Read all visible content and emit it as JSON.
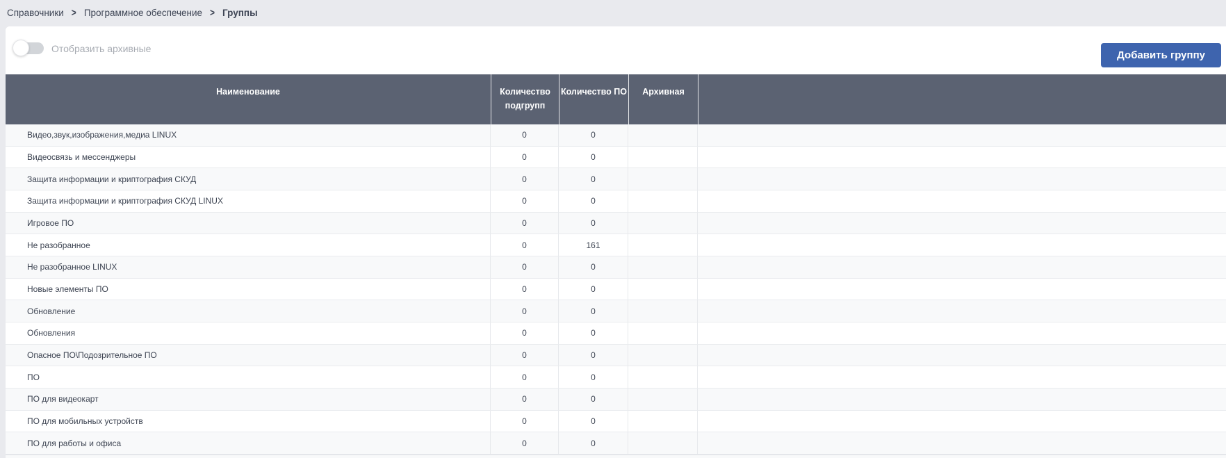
{
  "breadcrumb": {
    "separator": ">",
    "items": [
      {
        "label": "Справочники"
      },
      {
        "label": "Программное обеспечение"
      },
      {
        "label": "Группы"
      }
    ]
  },
  "toolbar": {
    "toggle_label": "Отобразить архивные",
    "toggle_state": "off",
    "add_button_label": "Добавить группу"
  },
  "table": {
    "columns": [
      {
        "label": "Наименование"
      },
      {
        "label": "Количество подгрупп"
      },
      {
        "label": "Количество ПО"
      },
      {
        "label": "Архивная"
      },
      {
        "label": ""
      }
    ],
    "rows": [
      {
        "name": "Видео,звук,изображения,медиа LINUX",
        "subgroups": "0",
        "software": "0",
        "archived": ""
      },
      {
        "name": "Видеосвязь и мессенджеры",
        "subgroups": "0",
        "software": "0",
        "archived": ""
      },
      {
        "name": "Защита информации и криптография СКУД",
        "subgroups": "0",
        "software": "0",
        "archived": ""
      },
      {
        "name": "Защита информации и криптография СКУД LINUX",
        "subgroups": "0",
        "software": "0",
        "archived": ""
      },
      {
        "name": "Игровое ПО",
        "subgroups": "0",
        "software": "0",
        "archived": ""
      },
      {
        "name": "Не разобранное",
        "subgroups": "0",
        "software": "161",
        "archived": ""
      },
      {
        "name": "Не разобранное LINUX",
        "subgroups": "0",
        "software": "0",
        "archived": ""
      },
      {
        "name": "Новые элементы ПО",
        "subgroups": "0",
        "software": "0",
        "archived": ""
      },
      {
        "name": "Обновление",
        "subgroups": "0",
        "software": "0",
        "archived": ""
      },
      {
        "name": "Обновления",
        "subgroups": "0",
        "software": "0",
        "archived": ""
      },
      {
        "name": "Опасное ПО\\Подозрительное ПО",
        "subgroups": "0",
        "software": "0",
        "archived": ""
      },
      {
        "name": "ПО",
        "subgroups": "0",
        "software": "0",
        "archived": ""
      },
      {
        "name": "ПО для видеокарт",
        "subgroups": "0",
        "software": "0",
        "archived": ""
      },
      {
        "name": "ПО для мобильных устройств",
        "subgroups": "0",
        "software": "0",
        "archived": ""
      },
      {
        "name": "ПО для работы и офиса",
        "subgroups": "0",
        "software": "0",
        "archived": ""
      }
    ]
  },
  "colors": {
    "page_background": "#e9eaee",
    "card_background": "#ffffff",
    "table_header_background": "#5b6272",
    "table_header_text": "#ffffff",
    "accent_button": "#3e64ae",
    "row_alt_background": "#f8f9fa",
    "divider": "#e7e9ec",
    "muted_text": "#a7abb2",
    "body_text": "#3d4452"
  }
}
